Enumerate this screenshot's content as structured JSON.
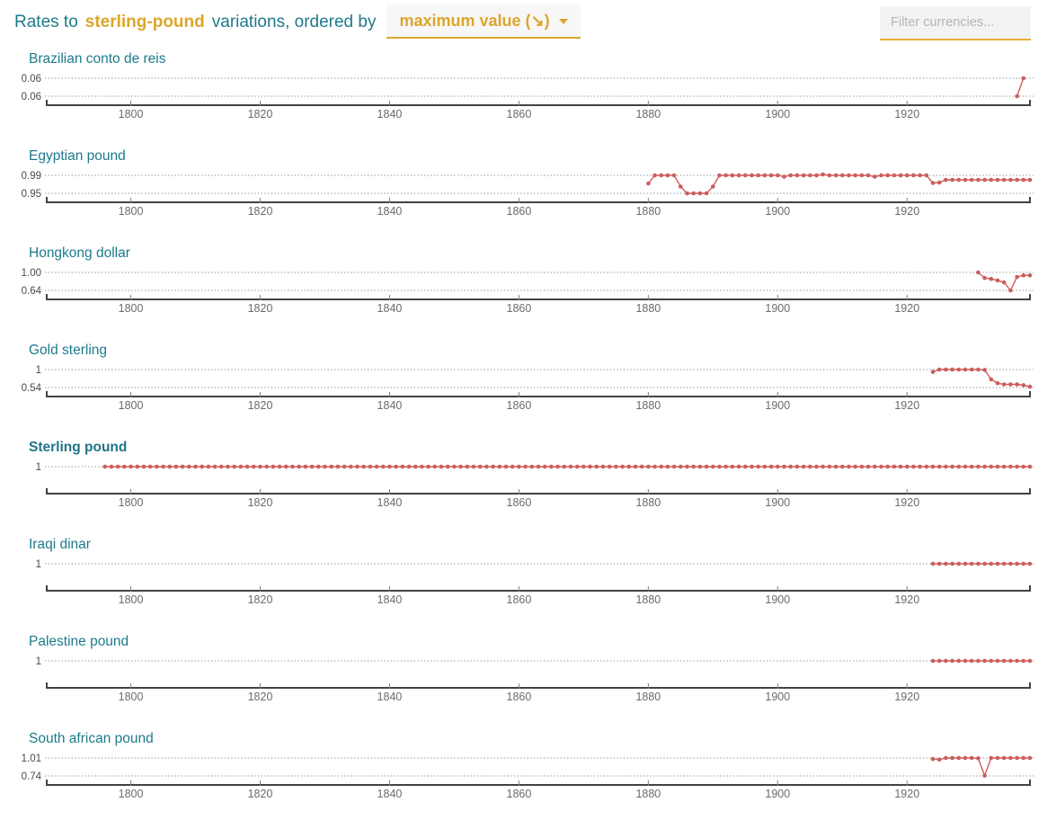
{
  "header": {
    "title_prefix": "Rates to",
    "currency": "sterling-pound",
    "title_suffix": "variations, ordered by",
    "sort_dropdown_value": "maximum value (↘)",
    "filter_placeholder": "Filter currencies..."
  },
  "colors": {
    "accent_teal": "#1d7a8c",
    "highlight_teal": "#1f7589",
    "accent_gold": "#dca62b",
    "series": "#cd5c5c",
    "grid": "#9a9a9a",
    "axis": "#424242"
  },
  "axis": {
    "x_min": 1787,
    "x_max": 1939,
    "x_ticks": [
      1800,
      1820,
      1840,
      1860,
      1880,
      1900,
      1920
    ]
  },
  "chart_data": [
    {
      "type": "line",
      "title": "Brazilian conto de reis",
      "y_labels": [
        "0.06",
        "0.06"
      ],
      "y_domain": [
        0.058,
        0.062
      ],
      "points": [
        [
          1937,
          0.058
        ],
        [
          1938,
          0.062
        ]
      ]
    },
    {
      "type": "line",
      "title": "Egyptian pound",
      "y_labels": [
        "0.99",
        "0.95"
      ],
      "y_domain": [
        0.95,
        0.99
      ],
      "points": [
        [
          1880,
          0.972
        ],
        [
          1881,
          0.99,
          1884
        ],
        [
          1885,
          0.965
        ],
        [
          1886,
          0.95,
          1889
        ],
        [
          1890,
          0.965
        ],
        [
          1891,
          0.99,
          1900
        ],
        [
          1901,
          0.987
        ],
        [
          1902,
          0.99,
          1906
        ],
        [
          1907,
          0.992
        ],
        [
          1908,
          0.99,
          1914
        ],
        [
          1915,
          0.987
        ],
        [
          1916,
          0.99,
          1923
        ],
        [
          1924,
          0.973
        ],
        [
          1925,
          0.974
        ],
        [
          1926,
          0.98,
          1939
        ]
      ]
    },
    {
      "type": "line",
      "title": "Hongkong dollar",
      "y_labels": [
        "1.00",
        "0.64"
      ],
      "y_domain": [
        0.64,
        1.0
      ],
      "points": [
        [
          1931,
          1.0
        ],
        [
          1932,
          0.89
        ],
        [
          1933,
          0.87
        ],
        [
          1934,
          0.84
        ],
        [
          1935,
          0.8
        ],
        [
          1936,
          0.64
        ],
        [
          1937,
          0.91
        ],
        [
          1938,
          0.94
        ],
        [
          1939,
          0.94
        ]
      ]
    },
    {
      "type": "line",
      "title": "Gold sterling",
      "y_labels": [
        "1",
        "0.54"
      ],
      "y_domain": [
        0.54,
        1.0
      ],
      "points": [
        [
          1924,
          0.94
        ],
        [
          1925,
          1.0,
          1931
        ],
        [
          1932,
          0.99
        ],
        [
          1933,
          0.75
        ],
        [
          1934,
          0.65
        ],
        [
          1935,
          0.62,
          1937
        ],
        [
          1938,
          0.6
        ],
        [
          1939,
          0.56
        ]
      ]
    },
    {
      "type": "line",
      "title": "Sterling pound",
      "highlight": true,
      "y_labels": [
        "1"
      ],
      "y_domain": [
        1,
        1
      ],
      "points": [
        [
          1796,
          1,
          1939
        ]
      ]
    },
    {
      "type": "line",
      "title": "Iraqi dinar",
      "y_labels": [
        "1"
      ],
      "y_domain": [
        1,
        1
      ],
      "points": [
        [
          1924,
          1,
          1939
        ]
      ]
    },
    {
      "type": "line",
      "title": "Palestine pound",
      "y_labels": [
        "1"
      ],
      "y_domain": [
        1,
        1
      ],
      "points": [
        [
          1924,
          1,
          1939
        ]
      ]
    },
    {
      "type": "line",
      "title": "South african pound",
      "y_labels": [
        "1.01",
        "0.74"
      ],
      "y_domain": [
        0.74,
        1.01
      ],
      "points": [
        [
          1924,
          0.995
        ],
        [
          1925,
          0.985
        ],
        [
          1926,
          1.01,
          1930
        ],
        [
          1931,
          1.005
        ],
        [
          1932,
          0.745
        ],
        [
          1933,
          1.01,
          1939
        ]
      ]
    }
  ]
}
